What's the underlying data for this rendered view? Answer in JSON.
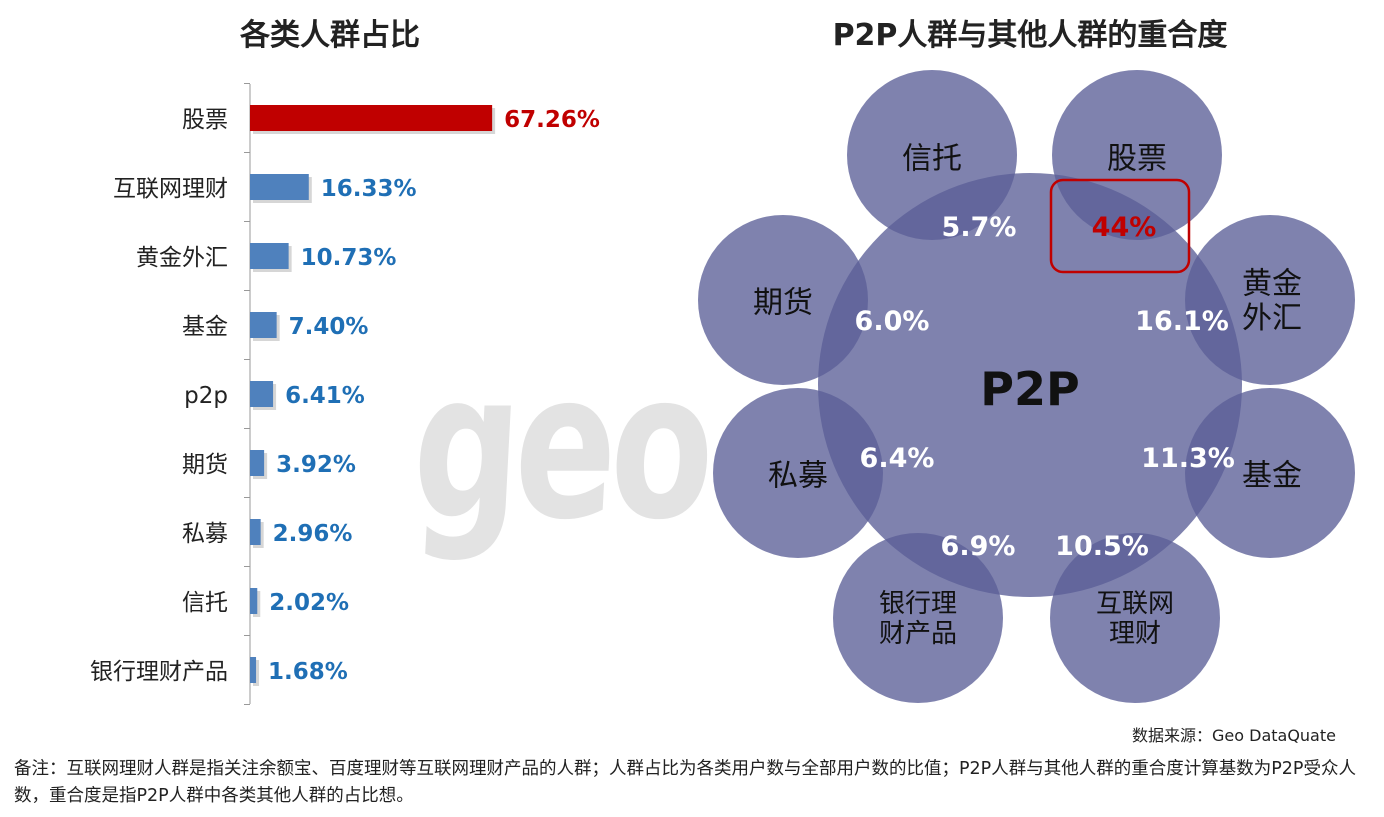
{
  "left_title": "各类人群占比",
  "right_title": "P2P人群与其他人群的重合度",
  "watermark": "geo",
  "source": "数据来源：Geo  DataQuate",
  "note": "备注：互联网理财人群是指关注余额宝、百度理财等互联网理财产品的人群；人群占比为各类用户数与全部用户数的比值；P2P人群与其他人群的重合度计算基数为P2P受众人数，重合度是指P2P人群中各类其他人群的占比想。",
  "colors": {
    "highlight": "#c00000",
    "bar": "#4f81bd",
    "value_text": "#1f6fb5",
    "circle": "#5b5f97"
  },
  "chart_data": [
    {
      "type": "bar",
      "orientation": "horizontal",
      "title": "各类人群占比",
      "categories": [
        "股票",
        "互联网理财",
        "黄金外汇",
        "基金",
        "p2p",
        "期货",
        "私募",
        "信托",
        "银行理财产品"
      ],
      "values": [
        67.26,
        16.33,
        10.73,
        7.4,
        6.41,
        3.92,
        2.96,
        2.02,
        1.68
      ],
      "labels": [
        "67.26%",
        "16.33%",
        "10.73%",
        "7.40%",
        "6.41%",
        "3.92%",
        "2.96%",
        "2.02%",
        "1.68%"
      ],
      "highlight_index": 0
    },
    {
      "type": "venn",
      "title": "P2P人群与其他人群的重合度",
      "center": "P2P",
      "groups": [
        "信托",
        "股票",
        "黄金外汇",
        "基金",
        "互联网理财",
        "银行理财产品",
        "私募",
        "期货"
      ],
      "group_labels": [
        "信托",
        "股票",
        "黄金\n外汇",
        "基金",
        "互联网\n理财",
        "银行理\n财产品",
        "私募",
        "期货"
      ],
      "overlap_labels": [
        "5.7%",
        "44%",
        "16.1%",
        "11.3%",
        "10.5%",
        "6.9%",
        "6.4%",
        "6.0%"
      ],
      "overlap_values": [
        5.7,
        44,
        16.1,
        11.3,
        10.5,
        6.9,
        6.4,
        6.0
      ],
      "highlight_group": "股票"
    }
  ]
}
